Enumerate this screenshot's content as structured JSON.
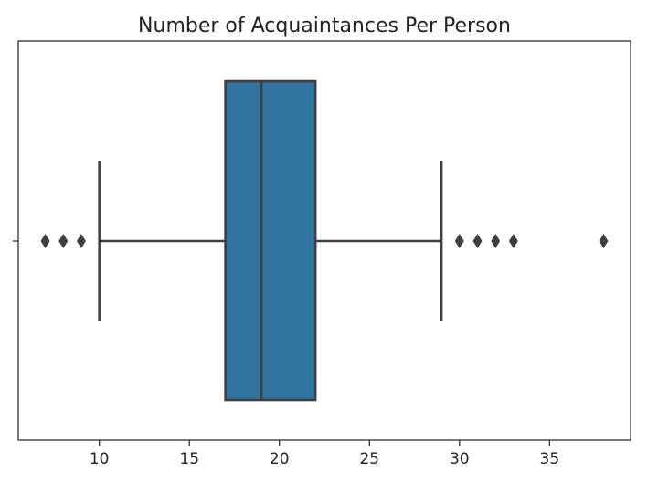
{
  "chart_data": {
    "type": "box",
    "title": "Number of Acquaintances Per Person",
    "xlabel": "",
    "ylabel": "",
    "xlim": [
      5.5,
      39.5
    ],
    "xticks": [
      10,
      15,
      20,
      25,
      30,
      35
    ],
    "orientation": "horizontal",
    "grid": false,
    "box": {
      "whisker_low": 10,
      "q1": 17,
      "median": 19,
      "q3": 22,
      "whisker_high": 29,
      "outliers": [
        7,
        8,
        9,
        30,
        31,
        32,
        33,
        38
      ]
    },
    "colors": {
      "box_fill": "#3274a1",
      "line": "#3f3f3f",
      "outlier": "#3f3f3f"
    }
  }
}
